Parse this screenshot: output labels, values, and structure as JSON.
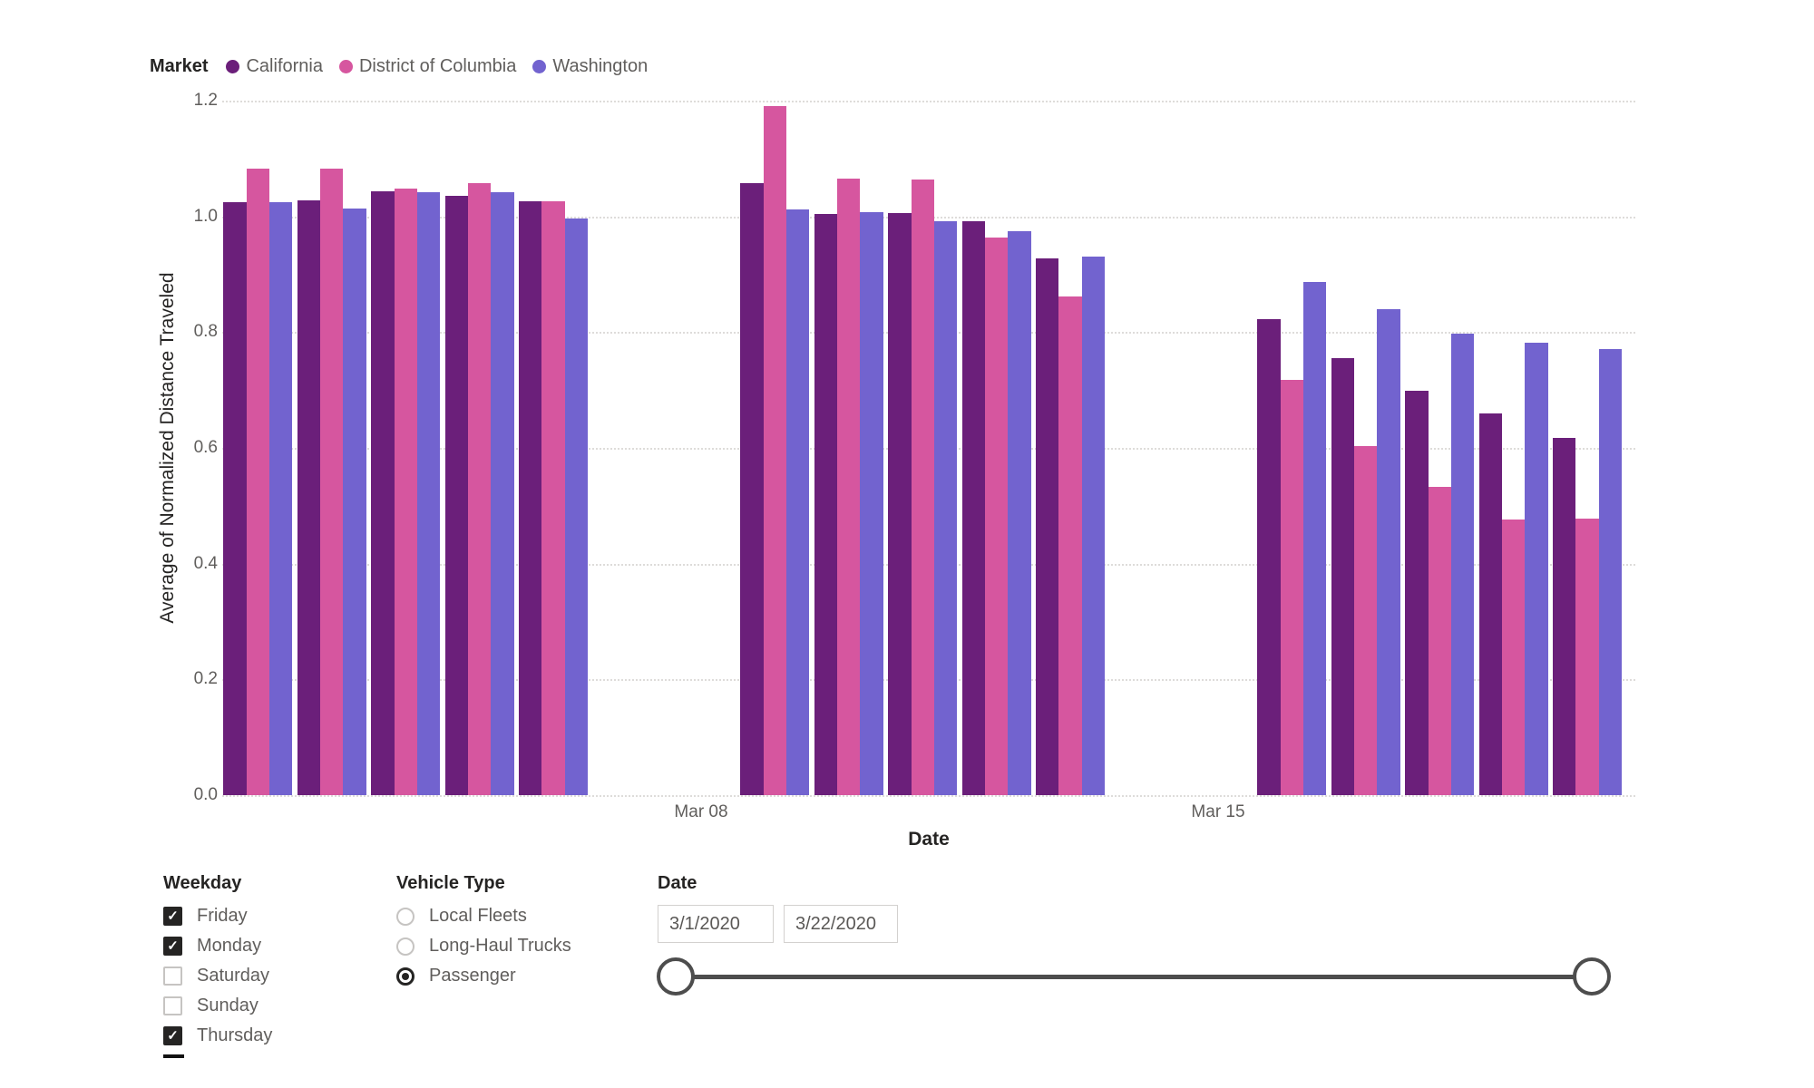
{
  "legend": {
    "title": "Market",
    "items": [
      {
        "label": "California",
        "color": "#6B1F7A"
      },
      {
        "label": "District of Columbia",
        "color": "#D6569F"
      },
      {
        "label": "Washington",
        "color": "#7263CF"
      }
    ]
  },
  "chart_data": {
    "type": "bar",
    "title": "",
    "xlabel": "Date",
    "ylabel": "Average of Normalized Distance Traveled",
    "ylim": [
      0,
      1.2
    ],
    "yticks": [
      0,
      0.2,
      0.4,
      0.6,
      0.8,
      1.0,
      1.2
    ],
    "grid": "horizontal dotted",
    "legend_position": "top-left",
    "categories": [
      "Mar 02",
      "Mar 03",
      "Mar 04",
      "Mar 05",
      "Mar 06",
      "Mar 09",
      "Mar 10",
      "Mar 11",
      "Mar 12",
      "Mar 13",
      "Mar 16",
      "Mar 17",
      "Mar 18",
      "Mar 19",
      "Mar 20"
    ],
    "x_days": [
      2,
      3,
      4,
      5,
      6,
      9,
      10,
      11,
      12,
      13,
      16,
      17,
      18,
      19,
      20
    ],
    "x_ticks": [
      {
        "label": "Mar 08",
        "day": 8
      },
      {
        "label": "Mar 15",
        "day": 15
      }
    ],
    "series": [
      {
        "name": "California",
        "color": "#6B1F7A",
        "values": [
          1.024,
          1.028,
          1.044,
          1.036,
          1.026,
          1.058,
          1.004,
          1.006,
          0.992,
          0.928,
          0.823,
          0.755,
          0.698,
          0.66,
          0.617
        ]
      },
      {
        "name": "District of Columbia",
        "color": "#D6569F",
        "values": [
          1.082,
          1.082,
          1.048,
          1.058,
          1.026,
          1.19,
          1.066,
          1.064,
          0.964,
          0.861,
          0.718,
          0.603,
          0.532,
          0.476,
          0.478
        ]
      },
      {
        "name": "Washington",
        "color": "#7263CF",
        "values": [
          1.024,
          1.014,
          1.042,
          1.042,
          0.996,
          1.012,
          1.007,
          0.992,
          0.975,
          0.931,
          0.886,
          0.839,
          0.798,
          0.781,
          0.771
        ]
      }
    ]
  },
  "filters": {
    "weekday": {
      "title": "Weekday",
      "items": [
        {
          "label": "Friday",
          "checked": true
        },
        {
          "label": "Monday",
          "checked": true
        },
        {
          "label": "Saturday",
          "checked": false
        },
        {
          "label": "Sunday",
          "checked": false
        },
        {
          "label": "Thursday",
          "checked": true
        }
      ]
    },
    "vehicle_type": {
      "title": "Vehicle Type",
      "options": [
        {
          "label": "Local Fleets",
          "selected": false
        },
        {
          "label": "Long-Haul Trucks",
          "selected": false
        },
        {
          "label": "Passenger",
          "selected": true
        }
      ]
    },
    "date_range": {
      "title": "Date",
      "start_value": "3/1/2020",
      "end_value": "3/22/2020"
    }
  }
}
